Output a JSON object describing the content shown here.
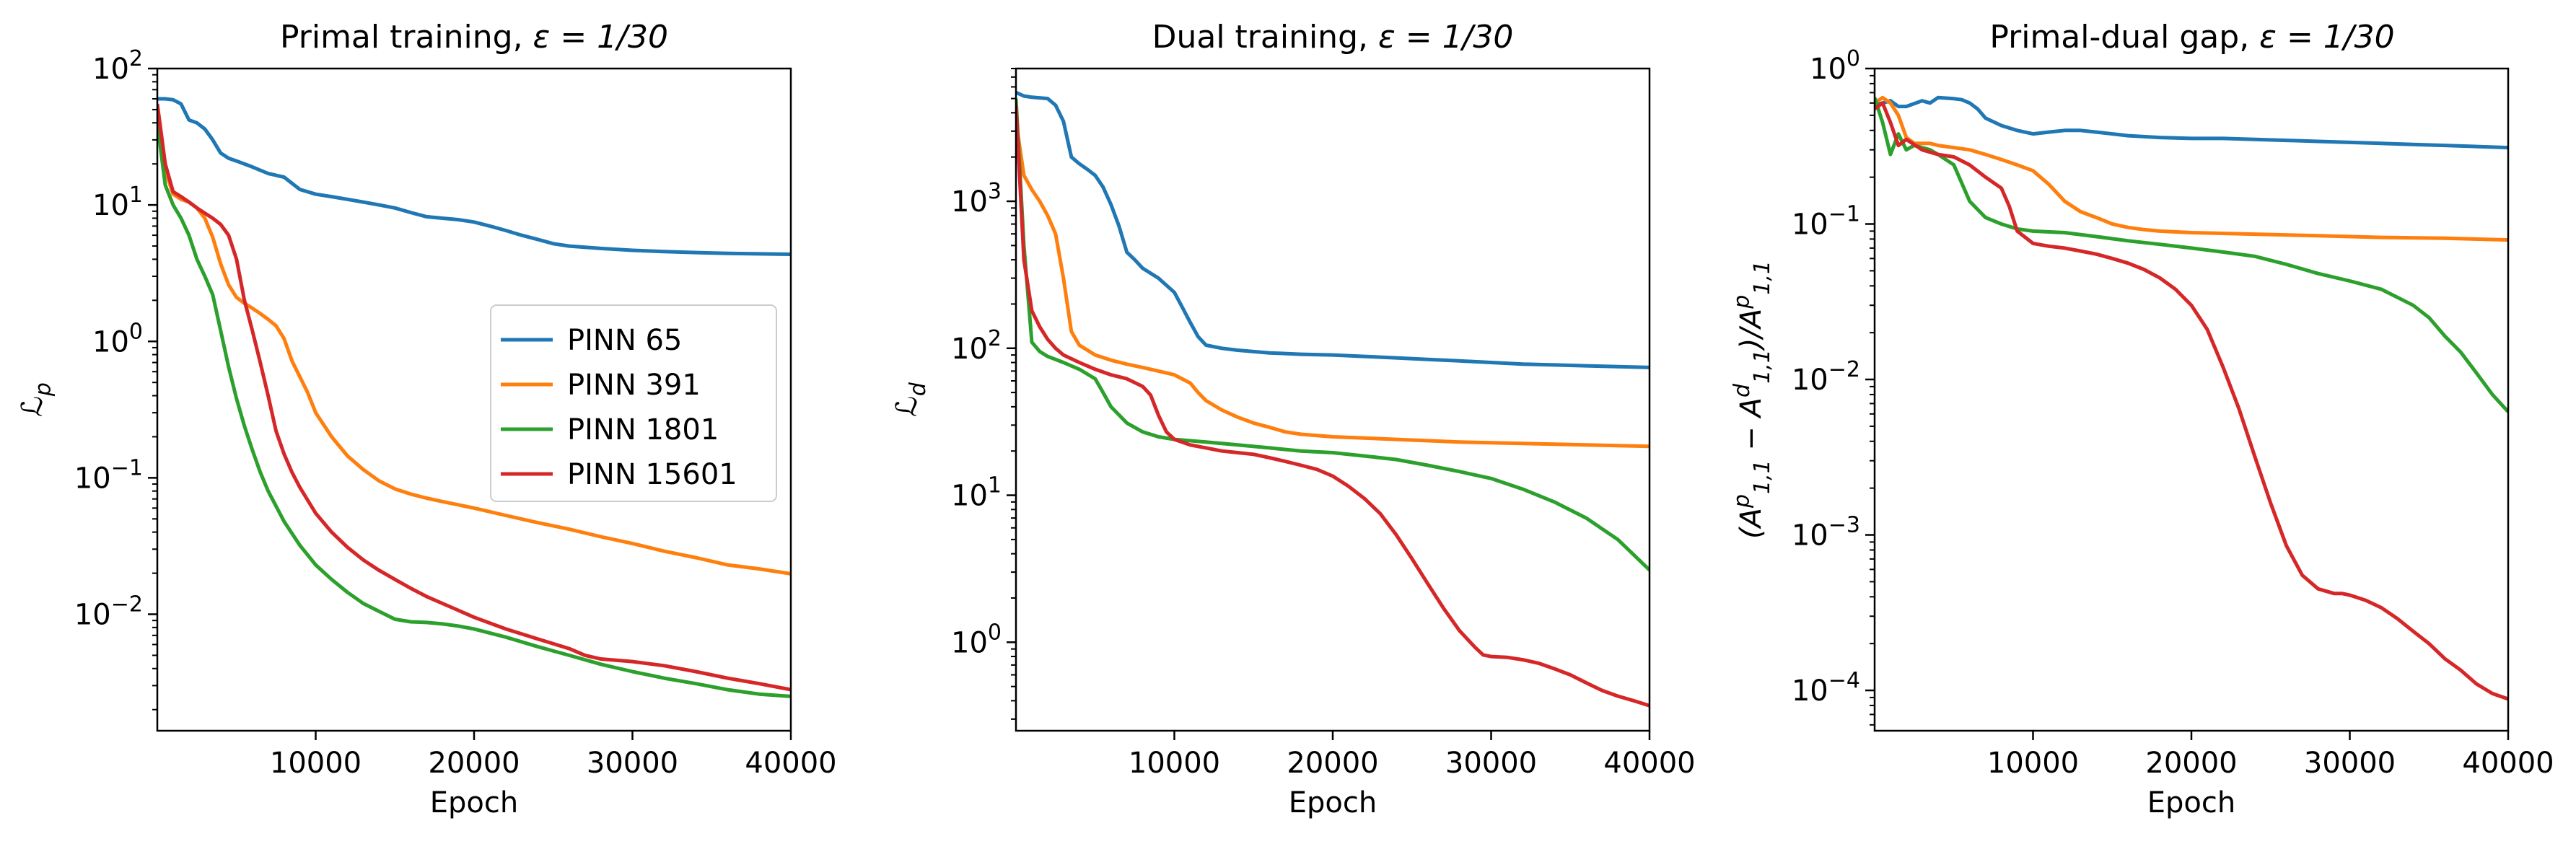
{
  "colors": {
    "PINN 65": "#1f77b4",
    "PINN 391": "#ff7f0e",
    "PINN 1801": "#2ca02c",
    "PINN 15601": "#d62728"
  },
  "chart_data": [
    {
      "type": "line",
      "title_prefix": "Primal training, ",
      "title_math": "ε = 1/30",
      "xlabel": "Epoch",
      "ylabel": "ℒ_p",
      "yscale": "log",
      "xlim": [
        0,
        40000
      ],
      "ylim": [
        0.0014,
        100
      ],
      "xticks": [
        10000,
        20000,
        30000,
        40000
      ],
      "yticks": [
        0.01,
        0.1,
        1,
        10,
        100
      ],
      "ytick_labels": [
        [
          "10",
          "−2"
        ],
        [
          "10",
          "−1"
        ],
        [
          "10",
          "0"
        ],
        [
          "10",
          "1"
        ],
        [
          "10",
          "2"
        ]
      ],
      "grid": false,
      "legend": {
        "placement": "center-right",
        "entries": [
          "PINN 65",
          "PINN 391",
          "PINN 1801",
          "PINN 15601"
        ]
      },
      "series": [
        {
          "name": "PINN 65",
          "x": [
            0,
            500,
            1000,
            1500,
            2000,
            2500,
            3000,
            3500,
            4000,
            4500,
            5000,
            6000,
            7000,
            8000,
            9000,
            10000,
            11000,
            12000,
            13000,
            14000,
            15000,
            16000,
            17000,
            18000,
            19000,
            20000,
            21000,
            22000,
            23000,
            24000,
            25000,
            26000,
            27000,
            28000,
            30000,
            32000,
            34000,
            36000,
            38000,
            40000
          ],
          "y": [
            60,
            60,
            59,
            55,
            42,
            40,
            36,
            30,
            24,
            22,
            21,
            19,
            17,
            16,
            13,
            12,
            11.5,
            11,
            10.5,
            10,
            9.5,
            8.8,
            8.2,
            8,
            7.8,
            7.5,
            7,
            6.5,
            6,
            5.6,
            5.2,
            5,
            4.9,
            4.8,
            4.65,
            4.55,
            4.48,
            4.42,
            4.38,
            4.35
          ]
        },
        {
          "name": "PINN 391",
          "x": [
            0,
            500,
            1000,
            1500,
            2000,
            2500,
            3000,
            3500,
            4000,
            4500,
            5000,
            5500,
            6000,
            6500,
            7000,
            7500,
            8000,
            8500,
            9000,
            9500,
            10000,
            11000,
            12000,
            13000,
            14000,
            15000,
            16000,
            17000,
            18000,
            20000,
            22000,
            24000,
            26000,
            28000,
            30000,
            32000,
            34000,
            36000,
            38000,
            40000
          ],
          "y": [
            50,
            18,
            12,
            11,
            10.5,
            9.5,
            8,
            5.8,
            3.7,
            2.6,
            2.1,
            1.9,
            1.75,
            1.6,
            1.45,
            1.3,
            1.05,
            0.72,
            0.55,
            0.42,
            0.3,
            0.2,
            0.145,
            0.115,
            0.095,
            0.083,
            0.076,
            0.071,
            0.067,
            0.06,
            0.053,
            0.047,
            0.042,
            0.037,
            0.033,
            0.029,
            0.026,
            0.023,
            0.0215,
            0.0198
          ]
        },
        {
          "name": "PINN 1801",
          "x": [
            0,
            500,
            1000,
            1500,
            2000,
            2500,
            3000,
            3500,
            4000,
            4500,
            5000,
            5500,
            6000,
            6500,
            7000,
            8000,
            9000,
            10000,
            11000,
            12000,
            13000,
            14000,
            15000,
            16000,
            17000,
            18000,
            19000,
            20000,
            22000,
            24000,
            26000,
            28000,
            30000,
            32000,
            34000,
            36000,
            38000,
            40000
          ],
          "y": [
            40,
            14,
            10,
            8,
            6,
            4,
            3,
            2.2,
            1.2,
            0.65,
            0.38,
            0.24,
            0.16,
            0.11,
            0.08,
            0.048,
            0.032,
            0.023,
            0.018,
            0.0145,
            0.012,
            0.0105,
            0.0092,
            0.0088,
            0.0087,
            0.0085,
            0.0082,
            0.0078,
            0.0068,
            0.0058,
            0.005,
            0.0043,
            0.0038,
            0.0034,
            0.0031,
            0.0028,
            0.0026,
            0.0025
          ]
        },
        {
          "name": "PINN 15601",
          "x": [
            0,
            500,
            1000,
            1500,
            2000,
            2500,
            3000,
            3500,
            4000,
            4500,
            5000,
            5500,
            6000,
            6500,
            7000,
            7500,
            8000,
            8500,
            9000,
            10000,
            11000,
            12000,
            13000,
            14000,
            15000,
            16000,
            17000,
            18000,
            19000,
            20000,
            22000,
            24000,
            26000,
            27000,
            28000,
            30000,
            32000,
            34000,
            36000,
            38000,
            40000
          ],
          "y": [
            55,
            20,
            12.5,
            11.5,
            10.5,
            9.5,
            8.7,
            8,
            7.2,
            6,
            4,
            2,
            1.2,
            0.7,
            0.4,
            0.22,
            0.15,
            0.11,
            0.085,
            0.055,
            0.04,
            0.031,
            0.025,
            0.021,
            0.018,
            0.0155,
            0.0135,
            0.012,
            0.0107,
            0.0095,
            0.0078,
            0.0066,
            0.0056,
            0.005,
            0.0047,
            0.0045,
            0.0042,
            0.0038,
            0.0034,
            0.0031,
            0.0028
          ]
        }
      ]
    },
    {
      "type": "line",
      "title_prefix": "Dual training, ",
      "title_math": "ε = 1/30",
      "xlabel": "Epoch",
      "ylabel": "ℒ_d",
      "yscale": "log",
      "xlim": [
        0,
        40000
      ],
      "ylim": [
        0.25,
        8000
      ],
      "xticks": [
        10000,
        20000,
        30000,
        40000
      ],
      "yticks": [
        1,
        10,
        100,
        1000
      ],
      "ytick_labels": [
        [
          "10",
          "0"
        ],
        [
          "10",
          "1"
        ],
        [
          "10",
          "2"
        ],
        [
          "10",
          "3"
        ]
      ],
      "grid": false,
      "series": [
        {
          "name": "PINN 65",
          "x": [
            0,
            500,
            1000,
            2000,
            2500,
            3000,
            3500,
            4000,
            4500,
            5000,
            5500,
            6000,
            6500,
            7000,
            7500,
            8000,
            9000,
            10000,
            10500,
            11000,
            11500,
            12000,
            13000,
            14000,
            16000,
            18000,
            20000,
            22000,
            24000,
            26000,
            28000,
            30000,
            32000,
            34000,
            36000,
            38000,
            40000
          ],
          "y": [
            5500,
            5200,
            5100,
            5000,
            4500,
            3500,
            2000,
            1800,
            1650,
            1500,
            1250,
            950,
            680,
            450,
            400,
            350,
            300,
            240,
            190,
            150,
            120,
            105,
            100,
            97,
            93,
            91,
            90,
            88,
            86,
            84,
            82,
            80,
            78,
            77,
            76,
            75,
            74
          ]
        },
        {
          "name": "PINN 391",
          "x": [
            0,
            500,
            1000,
            1500,
            2000,
            2500,
            3000,
            3500,
            4000,
            5000,
            6000,
            7000,
            8000,
            9000,
            10000,
            11000,
            11500,
            12000,
            13000,
            14000,
            15000,
            16000,
            17000,
            18000,
            20000,
            24000,
            28000,
            32000,
            36000,
            40000
          ],
          "y": [
            3500,
            1500,
            1200,
            1000,
            800,
            600,
            300,
            130,
            105,
            90,
            83,
            78,
            74,
            70,
            66,
            58,
            50,
            44,
            38,
            34,
            31,
            29,
            27,
            26,
            25,
            24,
            23,
            22.5,
            22,
            21.5
          ]
        },
        {
          "name": "PINN 1801",
          "x": [
            0,
            500,
            1000,
            1500,
            2000,
            3000,
            4000,
            5000,
            5500,
            6000,
            7000,
            8000,
            9000,
            10000,
            12000,
            14000,
            16000,
            18000,
            20000,
            22000,
            24000,
            26000,
            28000,
            30000,
            32000,
            34000,
            36000,
            38000,
            40000
          ],
          "y": [
            5000,
            500,
            110,
            95,
            88,
            80,
            72,
            62,
            50,
            40,
            31,
            27,
            25,
            24,
            23,
            22,
            21,
            20,
            19.5,
            18.5,
            17.5,
            16,
            14.5,
            13,
            11,
            9,
            7,
            5,
            3.1
          ]
        },
        {
          "name": "PINN 15601",
          "x": [
            0,
            500,
            1000,
            1500,
            2000,
            2500,
            3000,
            4000,
            5000,
            6000,
            7000,
            8000,
            8500,
            9000,
            9500,
            10000,
            11000,
            12000,
            13000,
            14000,
            15000,
            16000,
            17000,
            18000,
            19000,
            20000,
            21000,
            22000,
            23000,
            24000,
            25000,
            26000,
            27000,
            28000,
            29000,
            29500,
            30000,
            31000,
            32000,
            33000,
            34000,
            35000,
            36000,
            37000,
            38000,
            39000,
            40000
          ],
          "y": [
            4500,
            400,
            180,
            140,
            115,
            100,
            90,
            80,
            72,
            66,
            62,
            55,
            48,
            35,
            27,
            24,
            22,
            21,
            20,
            19.5,
            19,
            18,
            17,
            16,
            15,
            13.5,
            11.5,
            9.5,
            7.5,
            5.4,
            3.7,
            2.5,
            1.7,
            1.2,
            0.92,
            0.82,
            0.8,
            0.79,
            0.76,
            0.72,
            0.66,
            0.6,
            0.53,
            0.47,
            0.43,
            0.4,
            0.37
          ]
        }
      ]
    },
    {
      "type": "line",
      "title_prefix": "Primal-dual gap, ",
      "title_math": "ε = 1/30",
      "xlabel": "Epoch",
      "ylabel": "(A^p_{1,1} − A^d_{1,1})/A^p_{1,1}",
      "yscale": "log",
      "xlim": [
        0,
        40000
      ],
      "ylim": [
        5.5e-05,
        1
      ],
      "xticks": [
        10000,
        20000,
        30000,
        40000
      ],
      "yticks": [
        0.0001,
        0.001,
        0.01,
        0.1,
        1
      ],
      "ytick_labels": [
        [
          "10",
          "−4"
        ],
        [
          "10",
          "−3"
        ],
        [
          "10",
          "−2"
        ],
        [
          "10",
          "−1"
        ],
        [
          "10",
          "0"
        ]
      ],
      "grid": false,
      "series": [
        {
          "name": "PINN 65",
          "x": [
            0,
            500,
            1000,
            1500,
            2000,
            3000,
            3500,
            4000,
            5000,
            5500,
            6000,
            6500,
            7000,
            8000,
            9000,
            10000,
            11000,
            12000,
            13000,
            14000,
            16000,
            18000,
            20000,
            22000,
            24000,
            26000,
            28000,
            30000,
            32000,
            34000,
            36000,
            38000,
            40000
          ],
          "y": [
            0.58,
            0.6,
            0.62,
            0.57,
            0.57,
            0.62,
            0.6,
            0.65,
            0.64,
            0.63,
            0.6,
            0.55,
            0.48,
            0.43,
            0.4,
            0.38,
            0.39,
            0.4,
            0.4,
            0.39,
            0.37,
            0.36,
            0.355,
            0.355,
            0.35,
            0.345,
            0.34,
            0.335,
            0.33,
            0.325,
            0.32,
            0.315,
            0.31
          ]
        },
        {
          "name": "PINN 391",
          "x": [
            0,
            500,
            1000,
            1500,
            2000,
            2500,
            3000,
            3500,
            4000,
            6000,
            7000,
            8000,
            9000,
            10000,
            11000,
            12000,
            13000,
            14000,
            15000,
            16000,
            17000,
            18000,
            20000,
            24000,
            28000,
            32000,
            36000,
            40000
          ],
          "y": [
            0.6,
            0.65,
            0.6,
            0.5,
            0.36,
            0.33,
            0.33,
            0.33,
            0.32,
            0.3,
            0.28,
            0.26,
            0.24,
            0.22,
            0.18,
            0.14,
            0.12,
            0.11,
            0.1,
            0.095,
            0.092,
            0.09,
            0.088,
            0.086,
            0.084,
            0.082,
            0.081,
            0.079
          ]
        },
        {
          "name": "PINN 1801",
          "x": [
            0,
            500,
            1000,
            1500,
            2000,
            2500,
            3000,
            3500,
            4000,
            5000,
            6000,
            7000,
            8000,
            9000,
            10000,
            12000,
            14000,
            16000,
            18000,
            20000,
            22000,
            24000,
            26000,
            28000,
            30000,
            32000,
            34000,
            35000,
            36000,
            37000,
            38000,
            39000,
            40000
          ],
          "y": [
            0.65,
            0.45,
            0.28,
            0.38,
            0.3,
            0.32,
            0.31,
            0.3,
            0.28,
            0.24,
            0.14,
            0.11,
            0.1,
            0.093,
            0.09,
            0.088,
            0.083,
            0.078,
            0.074,
            0.07,
            0.066,
            0.062,
            0.055,
            0.048,
            0.043,
            0.038,
            0.03,
            0.025,
            0.019,
            0.015,
            0.011,
            0.008,
            0.0062
          ]
        },
        {
          "name": "PINN 15601",
          "x": [
            0,
            500,
            1000,
            1500,
            2000,
            3000,
            4000,
            5000,
            6000,
            7000,
            8000,
            8500,
            9000,
            10000,
            11000,
            12000,
            13000,
            14000,
            15000,
            16000,
            17000,
            18000,
            19000,
            20000,
            21000,
            22000,
            23000,
            24000,
            25000,
            26000,
            27000,
            28000,
            29000,
            29500,
            30000,
            31000,
            32000,
            33000,
            34000,
            35000,
            36000,
            37000,
            38000,
            39000,
            40000
          ],
          "y": [
            0.55,
            0.6,
            0.45,
            0.32,
            0.35,
            0.3,
            0.28,
            0.27,
            0.24,
            0.2,
            0.17,
            0.13,
            0.09,
            0.075,
            0.072,
            0.07,
            0.067,
            0.064,
            0.06,
            0.056,
            0.051,
            0.045,
            0.038,
            0.03,
            0.021,
            0.012,
            0.0065,
            0.0032,
            0.0016,
            0.00085,
            0.00055,
            0.00045,
            0.00042,
            0.00042,
            0.00041,
            0.00038,
            0.00034,
            0.00029,
            0.00024,
            0.0002,
            0.00016,
            0.000135,
            0.00011,
            9.55e-05,
            8.8e-05
          ]
        }
      ]
    }
  ]
}
